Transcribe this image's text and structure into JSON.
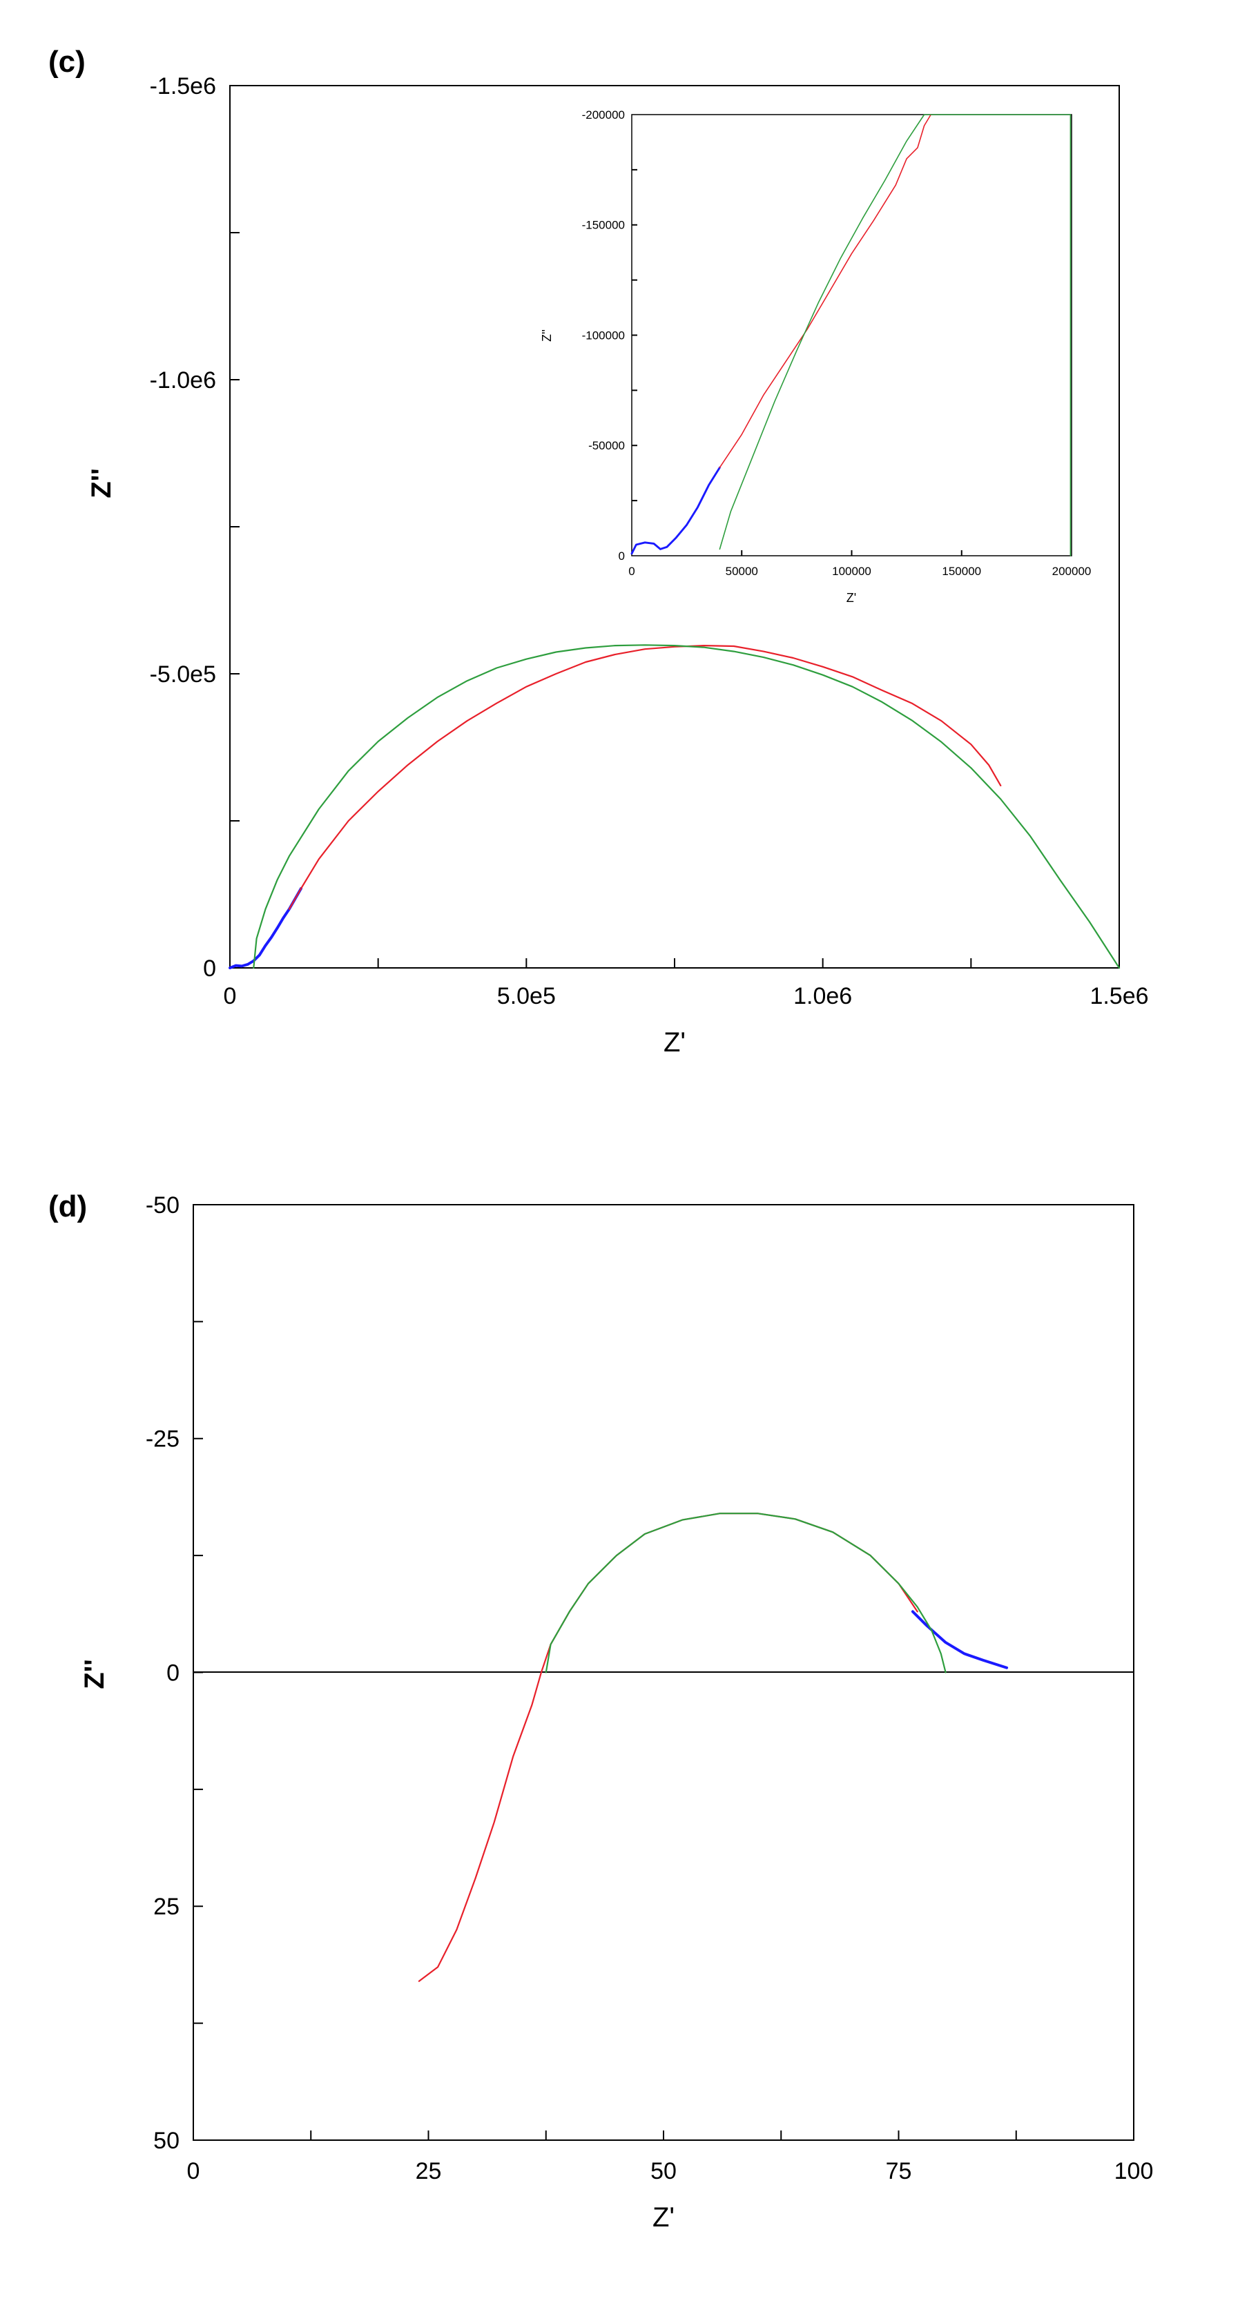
{
  "chart_data": [
    {
      "id": "c",
      "panel_label": "(c)",
      "type": "line",
      "xlabel": "Z'",
      "ylabel": "Z''",
      "xlim": [
        0,
        1500000
      ],
      "ylim": [
        0,
        -1500000
      ],
      "y_axis_inverted": true,
      "grid": false,
      "x_ticks": [
        {
          "value": 0,
          "label": "0"
        },
        {
          "value": 500000,
          "label": "5.0e5"
        },
        {
          "value": 1000000,
          "label": "1.0e6"
        },
        {
          "value": 1500000,
          "label": "1.5e6"
        }
      ],
      "y_ticks": [
        {
          "value": 0,
          "label": "0"
        },
        {
          "value": -500000,
          "label": "-5.0e5"
        },
        {
          "value": -1000000,
          "label": "-1.0e6"
        },
        {
          "value": -1500000,
          "label": "-1.5e6"
        }
      ],
      "series": [
        {
          "color": "#1a1aff",
          "points": [
            [
              0,
              0
            ],
            [
              10000,
              -4000
            ],
            [
              20000,
              -3000
            ],
            [
              30000,
              -6000
            ],
            [
              40000,
              -12000
            ],
            [
              50000,
              -22000
            ],
            [
              60000,
              -38000
            ],
            [
              70000,
              -52000
            ],
            [
              80000,
              -68000
            ],
            [
              90000,
              -85000
            ],
            [
              100000,
              -100000
            ],
            [
              120000,
              -135000
            ]
          ]
        },
        {
          "color": "#e8202a",
          "points": [
            [
              100000,
              -100000
            ],
            [
              120000,
              -135000
            ],
            [
              150000,
              -185000
            ],
            [
              200000,
              -250000
            ],
            [
              250000,
              -300000
            ],
            [
              300000,
              -345000
            ],
            [
              350000,
              -385000
            ],
            [
              400000,
              -420000
            ],
            [
              450000,
              -450000
            ],
            [
              500000,
              -478000
            ],
            [
              550000,
              -500000
            ],
            [
              600000,
              -520000
            ],
            [
              650000,
              -533000
            ],
            [
              700000,
              -542000
            ],
            [
              750000,
              -546000
            ],
            [
              800000,
              -548000
            ],
            [
              850000,
              -547000
            ],
            [
              900000,
              -538000
            ],
            [
              950000,
              -527000
            ],
            [
              1000000,
              -512000
            ],
            [
              1050000,
              -495000
            ],
            [
              1100000,
              -472000
            ],
            [
              1150000,
              -450000
            ],
            [
              1200000,
              -420000
            ],
            [
              1250000,
              -380000
            ],
            [
              1280000,
              -345000
            ],
            [
              1300000,
              -310000
            ]
          ]
        },
        {
          "color": "#2e9e3e",
          "points": [
            [
              40000,
              0
            ],
            [
              45000,
              -50000
            ],
            [
              60000,
              -100000
            ],
            [
              80000,
              -150000
            ],
            [
              100000,
              -190000
            ],
            [
              150000,
              -270000
            ],
            [
              200000,
              -335000
            ],
            [
              250000,
              -385000
            ],
            [
              300000,
              -425000
            ],
            [
              350000,
              -460000
            ],
            [
              400000,
              -488000
            ],
            [
              450000,
              -510000
            ],
            [
              500000,
              -525000
            ],
            [
              550000,
              -537000
            ],
            [
              600000,
              -544000
            ],
            [
              650000,
              -548000
            ],
            [
              700000,
              -549000
            ],
            [
              750000,
              -548000
            ],
            [
              800000,
              -545000
            ],
            [
              850000,
              -538000
            ],
            [
              900000,
              -528000
            ],
            [
              950000,
              -515000
            ],
            [
              1000000,
              -498000
            ],
            [
              1050000,
              -478000
            ],
            [
              1100000,
              -452000
            ],
            [
              1150000,
              -421000
            ],
            [
              1200000,
              -384000
            ],
            [
              1250000,
              -340000
            ],
            [
              1300000,
              -287000
            ],
            [
              1350000,
              -224000
            ],
            [
              1400000,
              -150000
            ],
            [
              1450000,
              -78000
            ],
            [
              1500000,
              0
            ]
          ]
        }
      ],
      "inset": {
        "type": "line",
        "xlabel": "Z'",
        "ylabel": "Z''",
        "xlim": [
          0,
          200000
        ],
        "ylim": [
          0,
          -200000
        ],
        "y_axis_inverted": true,
        "x_ticks": [
          {
            "value": 0,
            "label": "0"
          },
          {
            "value": 50000,
            "label": "50000"
          },
          {
            "value": 100000,
            "label": "100000"
          },
          {
            "value": 150000,
            "label": "150000"
          },
          {
            "value": 200000,
            "label": "200000"
          }
        ],
        "y_ticks": [
          {
            "value": 0,
            "label": "0"
          },
          {
            "value": -50000,
            "label": "-50000"
          },
          {
            "value": -100000,
            "label": "-100000"
          },
          {
            "value": -150000,
            "label": "-150000"
          },
          {
            "value": -200000,
            "label": "-200000"
          }
        ],
        "series": [
          {
            "color": "#1a1aff",
            "points": [
              [
                0,
                -1000
              ],
              [
                2000,
                -5000
              ],
              [
                6000,
                -6000
              ],
              [
                10000,
                -5500
              ],
              [
                13000,
                -3000
              ],
              [
                16000,
                -4000
              ],
              [
                20000,
                -8000
              ],
              [
                25000,
                -14000
              ],
              [
                30000,
                -22000
              ],
              [
                35000,
                -32000
              ],
              [
                40000,
                -40000
              ]
            ]
          },
          {
            "color": "#e8202a",
            "points": [
              [
                40000,
                -40000
              ],
              [
                50000,
                -55000
              ],
              [
                60000,
                -73000
              ],
              [
                70000,
                -88000
              ],
              [
                80000,
                -103000
              ],
              [
                90000,
                -120000
              ],
              [
                100000,
                -137000
              ],
              [
                110000,
                -152000
              ],
              [
                120000,
                -168000
              ],
              [
                125000,
                -180000
              ],
              [
                130000,
                -185000
              ],
              [
                133000,
                -195000
              ],
              [
                136000,
                -200000
              ]
            ]
          },
          {
            "color": "#2e9e3e",
            "points": [
              [
                40000,
                -3000
              ],
              [
                45000,
                -20000
              ],
              [
                55000,
                -45000
              ],
              [
                65000,
                -70000
              ],
              [
                75000,
                -93000
              ],
              [
                85000,
                -115000
              ],
              [
                95000,
                -135000
              ],
              [
                105000,
                -153000
              ],
              [
                115000,
                -170000
              ],
              [
                125000,
                -188000
              ],
              [
                133000,
                -200000
              ],
              [
                150000,
                -200000
              ],
              [
                175000,
                -200000
              ],
              [
                199500,
                -200000
              ],
              [
                199500,
                -100000
              ],
              [
                199500,
                0
              ]
            ]
          }
        ]
      }
    },
    {
      "id": "d",
      "panel_label": "(d)",
      "type": "line",
      "xlabel": "Z'",
      "ylabel": "Z''",
      "xlim": [
        0,
        100
      ],
      "ylim": [
        50,
        -50
      ],
      "y_axis_inverted": true,
      "grid": false,
      "zero_line": true,
      "x_ticks": [
        {
          "value": 0,
          "label": "0"
        },
        {
          "value": 25,
          "label": "25"
        },
        {
          "value": 50,
          "label": "50"
        },
        {
          "value": 75,
          "label": "75"
        },
        {
          "value": 100,
          "label": "100"
        }
      ],
      "y_ticks": [
        {
          "value": -50,
          "label": "-50"
        },
        {
          "value": -25,
          "label": "-25"
        },
        {
          "value": 0,
          "label": "0"
        },
        {
          "value": 25,
          "label": "25"
        },
        {
          "value": 50,
          "label": "50"
        }
      ],
      "series": [
        {
          "color": "#1a1aff",
          "points": [
            [
              76.5,
              -6.5
            ],
            [
              78,
              -5
            ],
            [
              80,
              -3.2
            ],
            [
              82,
              -2
            ],
            [
              84,
              -1.3
            ],
            [
              86.5,
              -0.5
            ]
          ]
        },
        {
          "color": "#e8202a",
          "points": [
            [
              24,
              33
            ],
            [
              26,
              31.5
            ],
            [
              28,
              27.5
            ],
            [
              30,
              22
            ],
            [
              32,
              16
            ],
            [
              34,
              9
            ],
            [
              36,
              3.5
            ],
            [
              37,
              0
            ],
            [
              38,
              -3
            ],
            [
              40,
              -6.5
            ],
            [
              42,
              -9.5
            ],
            [
              45,
              -12.5
            ],
            [
              48,
              -14.8
            ],
            [
              52,
              -16.3
            ],
            [
              56,
              -17
            ],
            [
              60,
              -17
            ],
            [
              64,
              -16.4
            ],
            [
              68,
              -15
            ],
            [
              72,
              -12.5
            ],
            [
              75,
              -9.5
            ],
            [
              77,
              -6.5
            ]
          ]
        },
        {
          "color": "#2e9e3e",
          "points": [
            [
              37.5,
              0
            ],
            [
              38,
              -3
            ],
            [
              40,
              -6.5
            ],
            [
              42,
              -9.5
            ],
            [
              45,
              -12.5
            ],
            [
              48,
              -14.8
            ],
            [
              52,
              -16.3
            ],
            [
              56,
              -17
            ],
            [
              60,
              -17
            ],
            [
              64,
              -16.4
            ],
            [
              68,
              -15
            ],
            [
              72,
              -12.5
            ],
            [
              75,
              -9.5
            ],
            [
              77,
              -7
            ],
            [
              78.5,
              -4.5
            ],
            [
              79.5,
              -2
            ],
            [
              80,
              0
            ]
          ]
        }
      ]
    }
  ]
}
